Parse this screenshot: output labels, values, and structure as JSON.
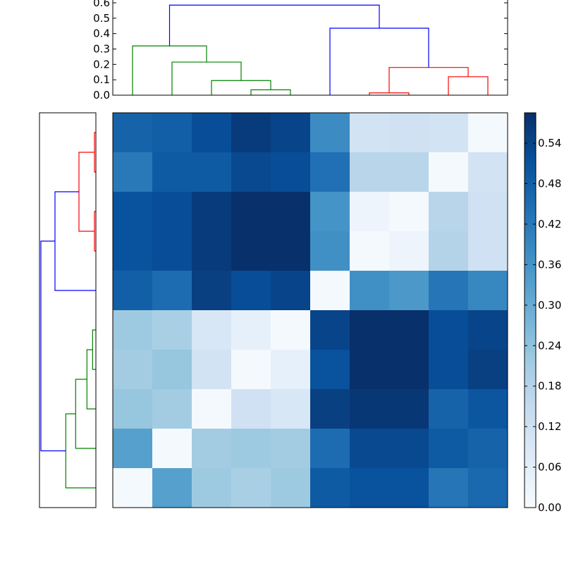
{
  "chart_data": [
    {
      "type": "dendrogram",
      "panel": "top",
      "title": "",
      "xlabel": "",
      "ylabel": "",
      "ylim": [
        0,
        0.6
      ],
      "yticks": [
        0.0,
        0.1,
        0.2,
        0.3,
        0.4,
        0.5,
        0.6
      ],
      "ytick_labels": [
        "0.0",
        "0.1",
        "0.2",
        "0.3",
        "0.4",
        "0.5",
        "0.6"
      ],
      "leaf_count": 10,
      "links": [
        {
          "x": [
            3.5,
            4.5
          ],
          "from": [
            0.0,
            0.0
          ],
          "height": 0.035,
          "color": "#008000"
        },
        {
          "x": [
            2.5,
            4.0
          ],
          "from": [
            0.0,
            0.035
          ],
          "height": 0.095,
          "color": "#008000"
        },
        {
          "x": [
            1.5,
            3.25
          ],
          "from": [
            0.0,
            0.095
          ],
          "height": 0.215,
          "color": "#008000"
        },
        {
          "x": [
            0.5,
            2.375
          ],
          "from": [
            0.0,
            0.215
          ],
          "height": 0.32,
          "color": "#008000"
        },
        {
          "x": [
            6.5,
            7.5
          ],
          "from": [
            0.0,
            0.0
          ],
          "height": 0.015,
          "color": "#ff0000"
        },
        {
          "x": [
            8.5,
            9.5
          ],
          "from": [
            0.0,
            0.0
          ],
          "height": 0.12,
          "color": "#ff0000"
        },
        {
          "x": [
            7.0,
            9.0
          ],
          "from": [
            0.015,
            0.12
          ],
          "height": 0.18,
          "color": "#ff0000"
        },
        {
          "x": [
            5.5,
            8.0
          ],
          "from": [
            0.0,
            0.18
          ],
          "height": 0.435,
          "color": "#0000ff"
        },
        {
          "x": [
            1.4375,
            6.75
          ],
          "from": [
            0.32,
            0.435
          ],
          "height": 0.585,
          "color": "#0000ff"
        }
      ]
    },
    {
      "type": "dendrogram",
      "panel": "left",
      "orientation": "left",
      "title": "",
      "leaf_count": 10,
      "distance_range": [
        0,
        0.6
      ],
      "links": [
        {
          "y": [
            0.5,
            1.5
          ],
          "from": [
            0.0,
            0.0
          ],
          "height": 0.015,
          "color": "#ff0000"
        },
        {
          "y": [
            2.5,
            3.5
          ],
          "from": [
            0.0,
            0.0
          ],
          "height": 0.015,
          "color": "#ff0000"
        },
        {
          "y": [
            1.0,
            3.0
          ],
          "from": [
            0.015,
            0.015
          ],
          "height": 0.18,
          "color": "#ff0000"
        },
        {
          "y": [
            2.0,
            4.5
          ],
          "from": [
            0.18,
            0.0
          ],
          "height": 0.435,
          "color": "#0000ff"
        },
        {
          "y": [
            5.5,
            6.5
          ],
          "from": [
            0.0,
            0.0
          ],
          "height": 0.035,
          "color": "#008000"
        },
        {
          "y": [
            6.0,
            7.5
          ],
          "from": [
            0.035,
            0.0
          ],
          "height": 0.095,
          "color": "#008000"
        },
        {
          "y": [
            6.75,
            8.5
          ],
          "from": [
            0.095,
            0.0
          ],
          "height": 0.215,
          "color": "#008000"
        },
        {
          "y": [
            7.625,
            9.5
          ],
          "from": [
            0.215,
            0.0
          ],
          "height": 0.32,
          "color": "#008000"
        },
        {
          "y": [
            3.25,
            8.5625
          ],
          "from": [
            0.435,
            0.32
          ],
          "height": 0.585,
          "color": "#0000ff"
        }
      ]
    },
    {
      "type": "heatmap",
      "panel": "main",
      "title": "",
      "xlabel": "",
      "ylabel": "",
      "rows": 10,
      "cols": 10,
      "vmin": 0.0,
      "vmax": 0.585,
      "colormap": "Blues",
      "values": [
        [
          0.47,
          0.48,
          0.52,
          0.56,
          0.54,
          0.38,
          0.11,
          0.12,
          0.11,
          0.01
        ],
        [
          0.42,
          0.49,
          0.49,
          0.53,
          0.52,
          0.44,
          0.17,
          0.17,
          0.01,
          0.11
        ],
        [
          0.51,
          0.52,
          0.56,
          0.585,
          0.585,
          0.36,
          0.03,
          0.01,
          0.17,
          0.12
        ],
        [
          0.51,
          0.52,
          0.56,
          0.585,
          0.585,
          0.37,
          0.01,
          0.03,
          0.18,
          0.12
        ],
        [
          0.48,
          0.45,
          0.55,
          0.52,
          0.54,
          0.01,
          0.37,
          0.35,
          0.43,
          0.39
        ],
        [
          0.22,
          0.2,
          0.09,
          0.05,
          0.01,
          0.54,
          0.585,
          0.585,
          0.52,
          0.54
        ],
        [
          0.21,
          0.23,
          0.11,
          0.01,
          0.05,
          0.51,
          0.585,
          0.585,
          0.52,
          0.55
        ],
        [
          0.23,
          0.21,
          0.01,
          0.12,
          0.09,
          0.55,
          0.57,
          0.57,
          0.47,
          0.5
        ],
        [
          0.33,
          0.01,
          0.21,
          0.22,
          0.21,
          0.45,
          0.53,
          0.53,
          0.49,
          0.47
        ],
        [
          0.01,
          0.33,
          0.22,
          0.2,
          0.22,
          0.49,
          0.51,
          0.51,
          0.43,
          0.46
        ]
      ]
    },
    {
      "type": "colorbar",
      "panel": "colorbar",
      "colormap": "Blues",
      "vmin": 0.0,
      "vmax": 0.585,
      "ticks": [
        0.0,
        0.06,
        0.12,
        0.18,
        0.24,
        0.3,
        0.36,
        0.42,
        0.48,
        0.54
      ],
      "tick_labels": [
        "0.00",
        "0.06",
        "0.12",
        "0.18",
        "0.24",
        "0.30",
        "0.36",
        "0.42",
        "0.48",
        "0.54"
      ]
    }
  ]
}
